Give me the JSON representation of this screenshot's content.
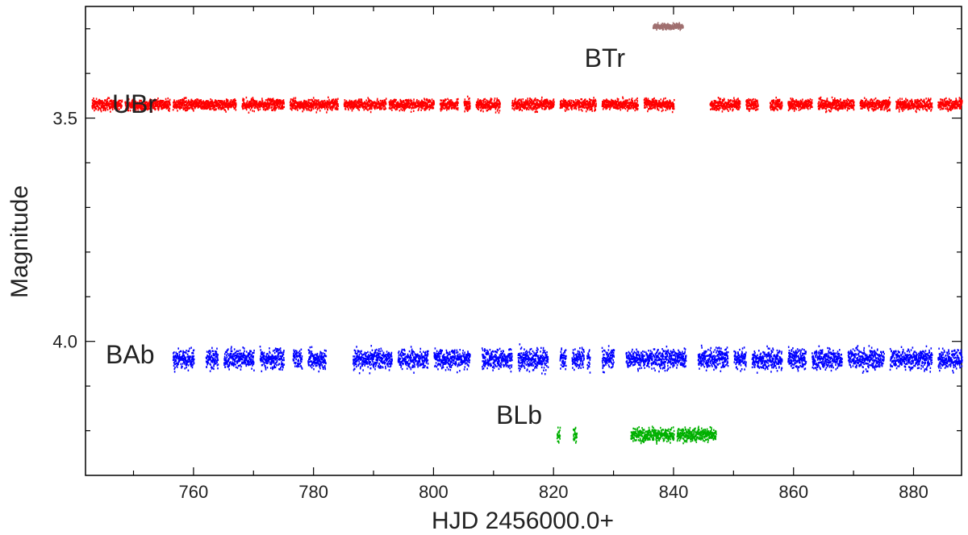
{
  "chart_data": {
    "type": "scatter",
    "title": "",
    "xlabel": "HJD 2456000.0+",
    "ylabel": "Magnitude",
    "xlim": [
      742,
      888
    ],
    "ylim": [
      4.3,
      3.25
    ],
    "y_inverted": true,
    "grid": false,
    "x_ticks": [
      760,
      780,
      800,
      820,
      840,
      860,
      880
    ],
    "y_ticks": [
      3.5,
      4.0
    ],
    "y_tick_labels": [
      "3.5",
      "4.0"
    ],
    "series": [
      {
        "name": "BTr",
        "color": "#a07070",
        "mean_magnitude": 3.295,
        "scatter": 0.006,
        "segments": [
          [
            836.5,
            841.5
          ]
        ]
      },
      {
        "name": "UBr",
        "color": "#ff0000",
        "mean_magnitude": 3.47,
        "scatter": 0.012,
        "segments": [
          [
            743,
            748
          ],
          [
            748.5,
            756
          ],
          [
            756.5,
            767
          ],
          [
            768,
            775
          ],
          [
            776,
            784
          ],
          [
            785,
            792
          ],
          [
            792.5,
            800
          ],
          [
            801,
            804
          ],
          [
            805,
            806
          ],
          [
            807,
            811
          ],
          [
            813,
            820
          ],
          [
            821,
            827
          ],
          [
            828,
            834
          ],
          [
            835,
            840
          ],
          [
            846,
            851
          ],
          [
            852,
            854
          ],
          [
            856,
            858
          ],
          [
            859,
            863
          ],
          [
            864,
            870
          ],
          [
            871,
            876
          ],
          [
            877,
            883
          ],
          [
            884,
            888
          ]
        ]
      },
      {
        "name": "BAb",
        "color": "#0000ff",
        "mean_magnitude": 4.04,
        "scatter": 0.022,
        "segments": [
          [
            756.5,
            760
          ],
          [
            762,
            764
          ],
          [
            765,
            770
          ],
          [
            771,
            775
          ],
          [
            776.5,
            778
          ],
          [
            779,
            782
          ],
          [
            786.5,
            793
          ],
          [
            794,
            799
          ],
          [
            800,
            806
          ],
          [
            808,
            813
          ],
          [
            814,
            819
          ],
          [
            821,
            822
          ],
          [
            823,
            825
          ],
          [
            825.5,
            826
          ],
          [
            828,
            830
          ],
          [
            832,
            842
          ],
          [
            844,
            849
          ],
          [
            850,
            852
          ],
          [
            853,
            858
          ],
          [
            859,
            862
          ],
          [
            863,
            868
          ],
          [
            869,
            875
          ],
          [
            876,
            883
          ],
          [
            884,
            888
          ]
        ]
      },
      {
        "name": "BLb",
        "color": "#00b000",
        "mean_magnitude": 4.21,
        "scatter": 0.015,
        "segments": [
          [
            820.5,
            821
          ],
          [
            823.2,
            823.8
          ],
          [
            832.8,
            840
          ],
          [
            840.5,
            847
          ]
        ]
      }
    ]
  }
}
